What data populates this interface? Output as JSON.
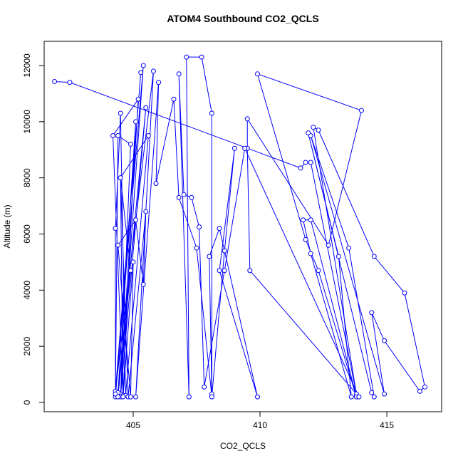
{
  "chart_data": {
    "type": "line",
    "title": "ATOM4 Southbound CO2_QCLS",
    "x_label": "CO2_QCLS",
    "y_label": "Altitude (m)",
    "x": [
      401.9,
      402.5,
      411.6,
      411.8,
      412.0,
      413.8,
      412.1,
      412.3,
      414.5,
      415.7,
      416.5,
      416.3,
      414.9,
      414.4,
      414.9,
      412.0,
      413.5,
      414.5,
      414.4,
      411.9,
      413.1,
      413.6,
      412.0,
      411.7,
      412.0,
      413.8,
      412.3,
      411.8,
      409.9,
      414.0,
      412.7,
      409.5,
      409.5,
      409.6,
      413.9,
      409.4,
      408.6,
      407.8,
      407.6,
      407.3,
      407.0,
      406.8,
      407.2,
      407.1,
      407.7,
      408.1,
      408.1,
      408.0,
      408.4,
      409.9,
      408.4,
      409.0,
      408.6,
      408.1,
      407.5,
      406.8,
      406.6,
      405.9,
      406.0,
      405.1,
      405.8,
      404.3,
      405.3,
      404.3,
      405.4,
      404.5,
      405.2,
      404.2,
      404.6,
      405.1,
      404.4,
      405.5,
      404.5,
      404.9,
      404.4,
      404.3,
      404.3,
      404.5,
      404.7,
      405.6,
      404.5,
      404.8,
      405.5,
      405.4,
      405.1,
      404.4,
      404.9,
      405.0,
      404.6,
      404.5,
      404.9,
      404.4
    ],
    "series": [
      {
        "color": "#0000ff",
        "values": [
          11430,
          11400,
          8350,
          8550,
          8550,
          300,
          9800,
          9700,
          5200,
          3900,
          550,
          400,
          2200,
          3200,
          300,
          9500,
          5500,
          200,
          350,
          9600,
          5200,
          200,
          5300,
          6500,
          6500,
          200,
          4700,
          5800,
          11700,
          10400,
          5600,
          10100,
          9050,
          4700,
          200,
          9050,
          4700,
          550,
          6250,
          7300,
          7400,
          11700,
          200,
          12300,
          12300,
          10300,
          300,
          5200,
          6200,
          200,
          4700,
          9050,
          5400,
          200,
          5500,
          7300,
          10800,
          7800,
          11400,
          200,
          11800,
          400,
          11750,
          200,
          12000,
          300,
          10800,
          9500,
          250,
          10000,
          350,
          10500,
          200,
          9200,
          9500,
          300,
          6200,
          10300,
          250,
          9500,
          8000,
          200,
          6800,
          4200,
          6500,
          5600,
          200,
          5000,
          200,
          8000,
          4700,
          200
        ]
      }
    ],
    "xlim": [
      401.49,
      417.16
    ],
    "ylim": [
      -330,
      12862
    ],
    "xticks": [
      405,
      410,
      415
    ],
    "yticks": [
      0,
      2000,
      4000,
      6000,
      8000,
      10000,
      12000
    ]
  }
}
